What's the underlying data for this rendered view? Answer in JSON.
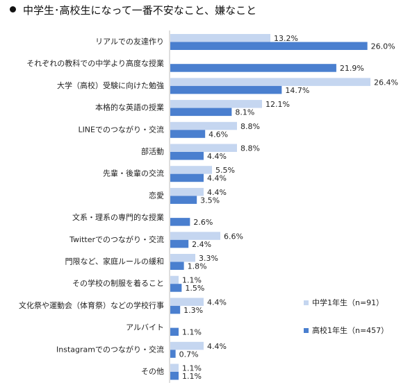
{
  "chart_data": {
    "type": "bar",
    "orientation": "horizontal",
    "title": "中学生･高校生になって一番不安なこと、嫌なこと",
    "categories": [
      "リアルでの友達作り",
      "それぞれの教科での中学より高度な授業",
      "大学（高校）受験に向けた勉強",
      "本格的な英語の授業",
      "LINEでのつながり・交流",
      "部活動",
      "先輩・後輩の交流",
      "恋愛",
      "文系・理系の専門的な授業",
      "Twitterでのつながり・交流",
      "門限など、家庭ルールの緩和",
      "その学校の制服を着ること",
      "文化祭や運動会（体育祭）などの学校行事",
      "アルバイト",
      "Instagramでのつながり・交流",
      "その他"
    ],
    "series": [
      {
        "name": "中学1年生（n=91）",
        "color": "#c5d6f0",
        "values": [
          13.2,
          null,
          26.4,
          12.1,
          8.8,
          8.8,
          5.5,
          4.4,
          null,
          6.6,
          3.3,
          1.1,
          4.4,
          null,
          4.4,
          1.1
        ],
        "labels": [
          "13.2%",
          "",
          "26.4%",
          "12.1%",
          "8.8%",
          "8.8%",
          "5.5%",
          "4.4%",
          "",
          "6.6%",
          "3.3%",
          "1.1%",
          "4.4%",
          "",
          "4.4%",
          "1.1%"
        ]
      },
      {
        "name": "高校1年生（n=457）",
        "color": "#4a7fcf",
        "values": [
          26.0,
          21.9,
          14.7,
          8.1,
          4.6,
          4.4,
          4.4,
          3.5,
          2.6,
          2.4,
          1.8,
          1.5,
          1.3,
          1.1,
          0.7,
          1.1
        ],
        "labels": [
          "26.0%",
          "21.9%",
          "14.7%",
          "8.1%",
          "4.6%",
          "4.4%",
          "4.4%",
          "3.5%",
          "2.6%",
          "2.4%",
          "1.8%",
          "1.5%",
          "1.3%",
          "1.1%",
          "0.7%",
          "1.1%"
        ]
      }
    ],
    "xlim": [
      0,
      26.4
    ],
    "grid": false,
    "legend_position": "right"
  }
}
